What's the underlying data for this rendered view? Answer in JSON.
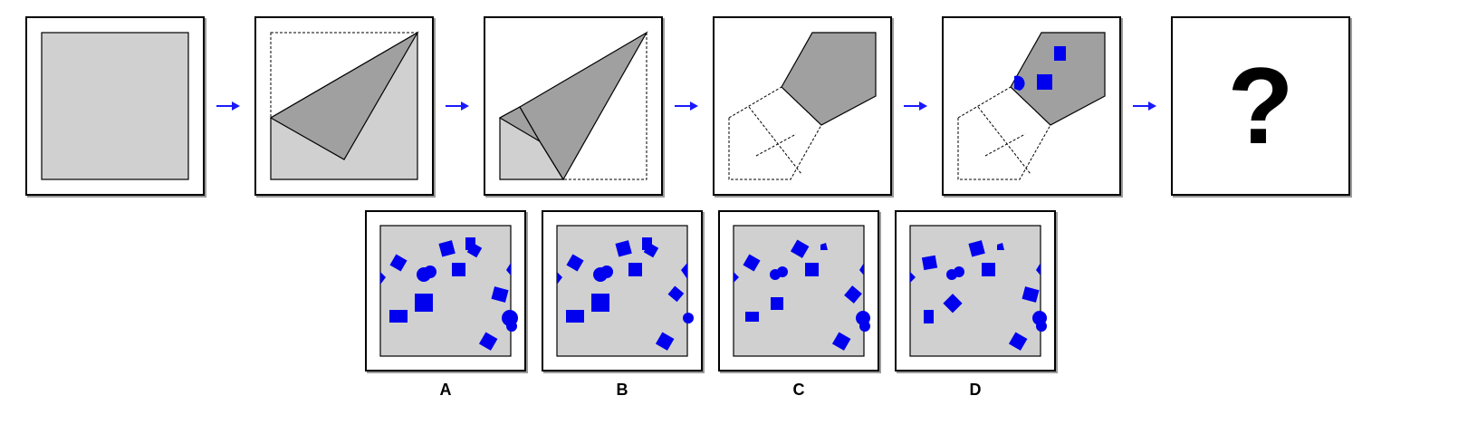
{
  "puzzle": {
    "question_mark": "?",
    "colors": {
      "paper": "#d0d0d0",
      "folded": "#a0a0a0",
      "holes": "#0000ee",
      "arrow": "#1a1aff",
      "outline": "#000000"
    },
    "steps": [
      {
        "name": "unfolded-square"
      },
      {
        "name": "fold-one"
      },
      {
        "name": "fold-two"
      },
      {
        "name": "fold-three"
      },
      {
        "name": "holes-punched"
      },
      {
        "name": "unknown-result"
      }
    ],
    "options": [
      {
        "label": "A"
      },
      {
        "label": "B"
      },
      {
        "label": "C"
      },
      {
        "label": "D"
      }
    ]
  }
}
